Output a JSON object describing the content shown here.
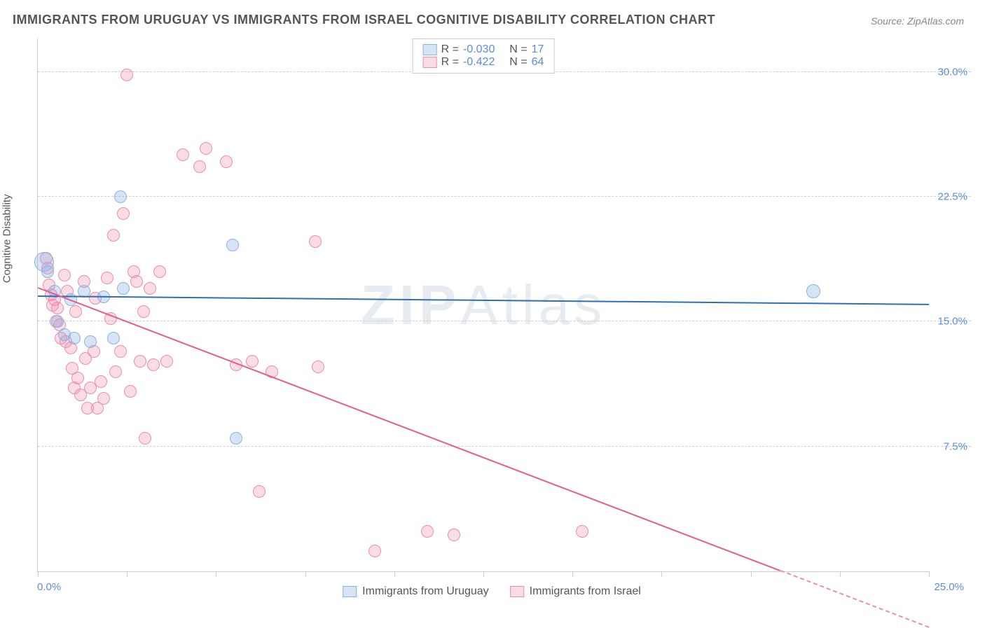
{
  "title": "IMMIGRANTS FROM URUGUAY VS IMMIGRANTS FROM ISRAEL COGNITIVE DISABILITY CORRELATION CHART",
  "source": "Source: ZipAtlas.com",
  "yaxis_label": "Cognitive Disability",
  "watermark": "ZIPAtlas",
  "chart": {
    "type": "scatter",
    "xlim": [
      0,
      27
    ],
    "ylim": [
      0,
      32
    ],
    "x_tick_positions": [
      0,
      2.7,
      5.4,
      8.1,
      10.8,
      13.5,
      16.2,
      18.9,
      21.6,
      24.3,
      27
    ],
    "x_start_label": "0.0%",
    "x_end_label": "25.0%",
    "y_gridlines": [
      {
        "value": 7.5,
        "label": "7.5%"
      },
      {
        "value": 15.0,
        "label": "15.0%"
      },
      {
        "value": 22.5,
        "label": "22.5%"
      },
      {
        "value": 30.0,
        "label": "30.0%"
      }
    ],
    "background_color": "#ffffff",
    "grid_color": "#d0d0d0",
    "axis_color": "#cccccc",
    "tick_label_color": "#5b8dd6",
    "title_color": "#555555",
    "title_fontsize": 18,
    "label_fontsize": 15
  },
  "series": {
    "uruguay": {
      "label": "Immigrants from Uruguay",
      "fill_color": "rgba(137,179,226,0.35)",
      "stroke_color": "#89b3e2",
      "line_color": "#2f6fb3",
      "R": "-0.030",
      "N": "17",
      "marker_radius": 9,
      "trend": {
        "x1": 0,
        "y1": 16.5,
        "x2": 27,
        "y2": 16.0
      },
      "points": [
        {
          "x": 0.2,
          "y": 18.6,
          "r": 14
        },
        {
          "x": 0.3,
          "y": 18.0,
          "r": 9
        },
        {
          "x": 0.5,
          "y": 16.8,
          "r": 9
        },
        {
          "x": 0.6,
          "y": 15.0,
          "r": 9
        },
        {
          "x": 0.8,
          "y": 14.2,
          "r": 9
        },
        {
          "x": 1.0,
          "y": 16.3,
          "r": 9
        },
        {
          "x": 1.1,
          "y": 14.0,
          "r": 9
        },
        {
          "x": 1.4,
          "y": 16.8,
          "r": 9
        },
        {
          "x": 1.6,
          "y": 13.8,
          "r": 9
        },
        {
          "x": 2.0,
          "y": 16.5,
          "r": 9
        },
        {
          "x": 2.3,
          "y": 14.0,
          "r": 9
        },
        {
          "x": 2.5,
          "y": 22.5,
          "r": 9
        },
        {
          "x": 2.6,
          "y": 17.0,
          "r": 9
        },
        {
          "x": 5.9,
          "y": 19.6,
          "r": 9
        },
        {
          "x": 6.0,
          "y": 8.0,
          "r": 9
        },
        {
          "x": 23.5,
          "y": 16.8,
          "r": 10
        }
      ]
    },
    "israel": {
      "label": "Immigrants from Israel",
      "fill_color": "rgba(238,140,170,0.30)",
      "stroke_color": "#ee8caa",
      "line_color": "#e75a8d",
      "R": "-0.422",
      "N": "64",
      "marker_radius": 9,
      "trend": {
        "x1": 0,
        "y1": 17.0,
        "x2": 22.5,
        "y2": 0.0
      },
      "trend_dash": {
        "x1": 22.5,
        "y1": 0.0,
        "x2": 27,
        "y2": -3.4
      },
      "points": [
        {
          "x": 0.25,
          "y": 18.8
        },
        {
          "x": 0.3,
          "y": 18.2
        },
        {
          "x": 0.35,
          "y": 17.2
        },
        {
          "x": 0.4,
          "y": 16.6
        },
        {
          "x": 0.45,
          "y": 16.0
        },
        {
          "x": 0.5,
          "y": 16.3
        },
        {
          "x": 0.55,
          "y": 15.0
        },
        {
          "x": 0.6,
          "y": 15.8
        },
        {
          "x": 0.65,
          "y": 14.8
        },
        {
          "x": 0.7,
          "y": 14.0
        },
        {
          "x": 0.8,
          "y": 17.8
        },
        {
          "x": 0.85,
          "y": 13.8
        },
        {
          "x": 0.9,
          "y": 16.8
        },
        {
          "x": 1.0,
          "y": 13.4
        },
        {
          "x": 1.05,
          "y": 12.2
        },
        {
          "x": 1.1,
          "y": 11.0
        },
        {
          "x": 1.15,
          "y": 15.6
        },
        {
          "x": 1.2,
          "y": 11.6
        },
        {
          "x": 1.3,
          "y": 10.6
        },
        {
          "x": 1.4,
          "y": 17.4
        },
        {
          "x": 1.45,
          "y": 12.8
        },
        {
          "x": 1.5,
          "y": 9.8
        },
        {
          "x": 1.6,
          "y": 11.0
        },
        {
          "x": 1.7,
          "y": 13.2
        },
        {
          "x": 1.75,
          "y": 16.4
        },
        {
          "x": 1.8,
          "y": 9.8
        },
        {
          "x": 1.9,
          "y": 11.4
        },
        {
          "x": 2.0,
          "y": 10.4
        },
        {
          "x": 2.1,
          "y": 17.6
        },
        {
          "x": 2.2,
          "y": 15.2
        },
        {
          "x": 2.3,
          "y": 20.2
        },
        {
          "x": 2.35,
          "y": 12.0
        },
        {
          "x": 2.5,
          "y": 13.2
        },
        {
          "x": 2.6,
          "y": 21.5
        },
        {
          "x": 2.7,
          "y": 29.8
        },
        {
          "x": 2.8,
          "y": 10.8
        },
        {
          "x": 2.9,
          "y": 18.0
        },
        {
          "x": 3.0,
          "y": 17.4
        },
        {
          "x": 3.1,
          "y": 12.6
        },
        {
          "x": 3.2,
          "y": 15.6
        },
        {
          "x": 3.25,
          "y": 8.0
        },
        {
          "x": 3.4,
          "y": 17.0
        },
        {
          "x": 3.5,
          "y": 12.4
        },
        {
          "x": 3.7,
          "y": 18.0
        },
        {
          "x": 3.9,
          "y": 12.6
        },
        {
          "x": 4.4,
          "y": 25.0
        },
        {
          "x": 4.9,
          "y": 24.3
        },
        {
          "x": 5.1,
          "y": 25.4
        },
        {
          "x": 5.7,
          "y": 24.6
        },
        {
          "x": 6.0,
          "y": 12.4
        },
        {
          "x": 6.5,
          "y": 12.6
        },
        {
          "x": 6.7,
          "y": 4.8
        },
        {
          "x": 7.1,
          "y": 12.0
        },
        {
          "x": 8.4,
          "y": 19.8
        },
        {
          "x": 8.5,
          "y": 12.3
        },
        {
          "x": 10.2,
          "y": 1.2
        },
        {
          "x": 11.8,
          "y": 2.4
        },
        {
          "x": 12.6,
          "y": 2.2
        },
        {
          "x": 16.5,
          "y": 2.4
        }
      ]
    }
  },
  "legend_labels": {
    "R_prefix": "R =",
    "N_prefix": "N ="
  }
}
